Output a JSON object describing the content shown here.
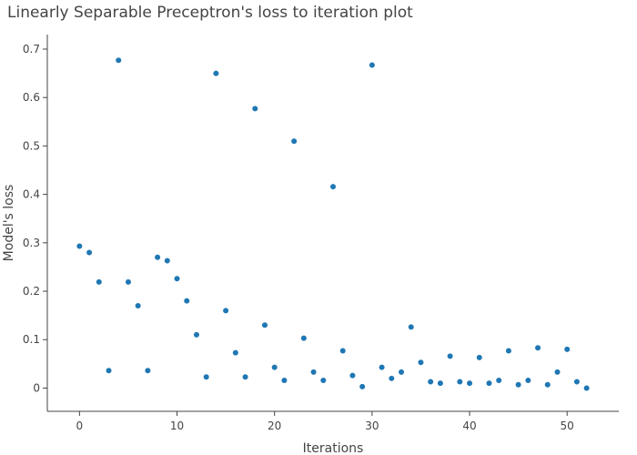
{
  "chart_data": {
    "type": "scatter",
    "title": "Linearly Separable Preceptron's loss to iteration plot",
    "xlabel": "Iterations",
    "ylabel": "Model's loss",
    "xlim": [
      -3.3,
      55.3
    ],
    "ylim": [
      -0.048,
      0.73
    ],
    "xticks": [
      0,
      10,
      20,
      30,
      40,
      50
    ],
    "yticks": [
      0,
      0.1,
      0.2,
      0.3,
      0.4,
      0.5,
      0.6,
      0.7
    ],
    "ytick_labels": [
      "0",
      "0.1",
      "0.2",
      "0.3",
      "0.4",
      "0.5",
      "0.6",
      "0.7"
    ],
    "grid": false,
    "marker_color": "#1f77b4",
    "x": [
      0,
      1,
      2,
      3,
      4,
      5,
      6,
      7,
      8,
      9,
      10,
      11,
      12,
      13,
      14,
      15,
      16,
      17,
      18,
      19,
      20,
      21,
      22,
      23,
      24,
      25,
      26,
      27,
      28,
      29,
      30,
      31,
      32,
      33,
      34,
      35,
      36,
      37,
      38,
      39,
      40,
      41,
      42,
      43,
      44,
      45,
      46,
      47,
      48,
      49,
      50,
      51,
      52
    ],
    "y": [
      0.293,
      0.28,
      0.219,
      0.036,
      0.677,
      0.219,
      0.17,
      0.036,
      0.27,
      0.263,
      0.226,
      0.18,
      0.11,
      0.023,
      0.65,
      0.16,
      0.073,
      0.023,
      0.577,
      0.13,
      0.043,
      0.016,
      0.51,
      0.103,
      0.033,
      0.016,
      0.416,
      0.077,
      0.026,
      0.003,
      0.667,
      0.043,
      0.02,
      0.033,
      0.126,
      0.053,
      0.013,
      0.01,
      0.066,
      0.013,
      0.01,
      0.063,
      0.01,
      0.016,
      0.077,
      0.007,
      0.016,
      0.083,
      0.007,
      0.033,
      0.08,
      0.013,
      0.0
    ]
  }
}
